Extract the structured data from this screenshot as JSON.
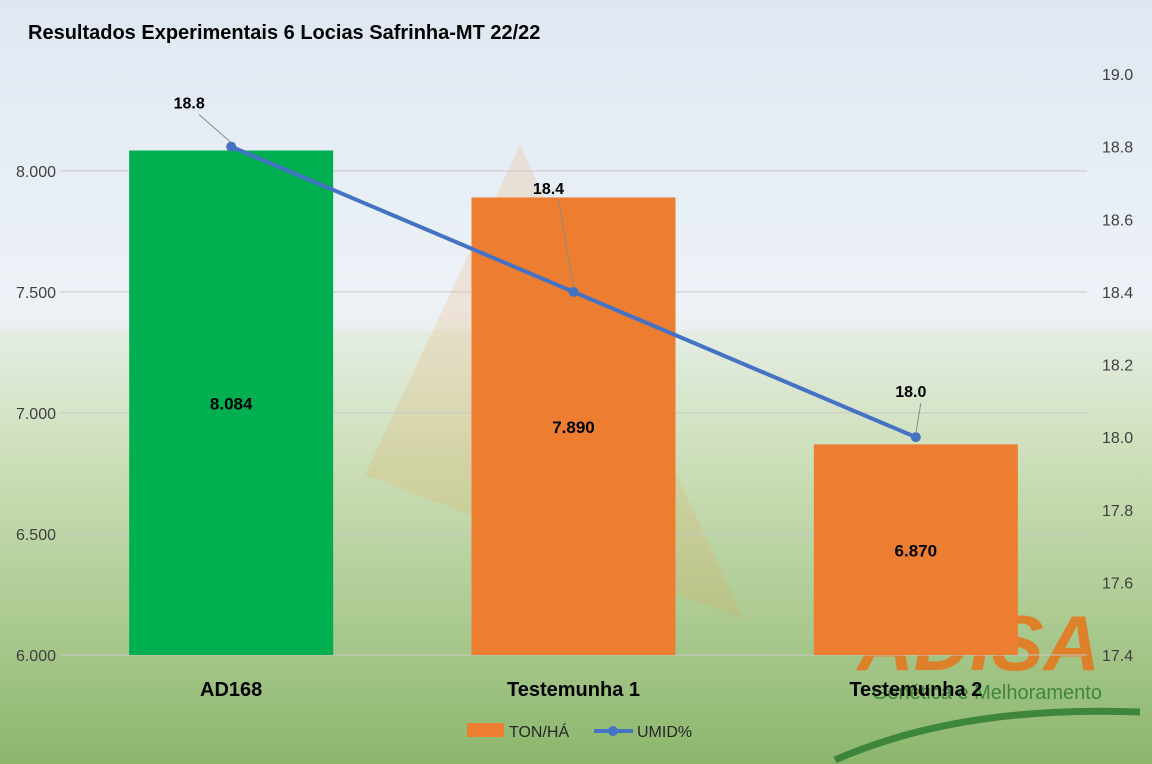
{
  "chart_data": {
    "type": "bar",
    "title": "Resultados Experimentais 6 Locias Safrinha-MT 22/22",
    "categories": [
      "AD168",
      "Testemunha 1",
      "Testemunha 2"
    ],
    "series": [
      {
        "name": "TON/HÁ",
        "type": "bar",
        "axis": "left",
        "values": [
          8.084,
          7.89,
          6.87
        ],
        "labels": [
          "8.084",
          "7.890",
          "6.870"
        ],
        "colors": [
          "#00b050",
          "#ed7d31",
          "#ed7d31"
        ]
      },
      {
        "name": "UMID%",
        "type": "line",
        "axis": "right",
        "values": [
          18.8,
          18.4,
          18.0
        ],
        "labels": [
          "18.8",
          "18.4",
          "18.0"
        ],
        "color": "#4472c4"
      }
    ],
    "y_left": {
      "min": 6.0,
      "max": 8.4,
      "ticks": [
        6.0,
        6.5,
        7.0,
        7.5,
        8.0
      ],
      "tick_labels": [
        "6.000",
        "6.500",
        "7.000",
        "7.500",
        "8.000"
      ]
    },
    "y_right": {
      "min": 17.4,
      "max": 19.0,
      "ticks": [
        17.4,
        17.6,
        17.8,
        18.0,
        18.2,
        18.4,
        18.6,
        18.8,
        19.0
      ],
      "tick_labels": [
        "17.4",
        "17.6",
        "17.8",
        "18.0",
        "18.2",
        "18.4",
        "18.6",
        "18.8",
        "19.0"
      ]
    },
    "grid": true,
    "legend_position": "bottom"
  },
  "watermark": {
    "brand": "ADISA",
    "tagline": "Genética e Melhoramento",
    "color": "#e8751a"
  }
}
